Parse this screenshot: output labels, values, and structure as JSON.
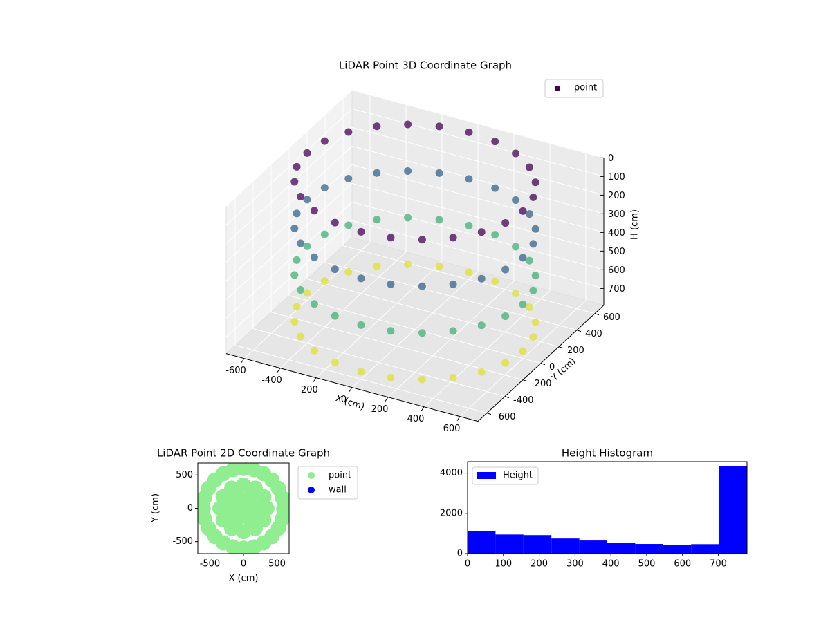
{
  "chart_data": [
    {
      "type": "scatter3d",
      "title": "LiDAR Point 3D Coordinate Graph",
      "xlabel": "X (cm)",
      "ylabel": "Y (cm)",
      "zlabel": "H (cm)",
      "xlim": [
        -700,
        700
      ],
      "ylim": [
        -700,
        700
      ],
      "zlim": [
        0,
        790
      ],
      "z_inverted": true,
      "xticks": [
        -600,
        -400,
        -200,
        0,
        200,
        400,
        600
      ],
      "yticks": [
        -600,
        -400,
        -200,
        0,
        200,
        400,
        600
      ],
      "zticks": [
        0,
        100,
        200,
        300,
        400,
        500,
        600,
        700
      ],
      "colormap": "viridis",
      "legend": "upper right",
      "grid": true,
      "series": [
        {
          "name": "point",
          "color": "#440154",
          "x": [
            600,
            580,
            520,
            424,
            300,
            155,
            0,
            -155,
            -300,
            -424,
            -520,
            -580,
            -600,
            -580,
            -520,
            -424,
            -300,
            -155,
            0,
            155,
            300,
            424,
            520,
            580,
            600,
            580,
            520,
            424,
            300,
            155,
            0,
            -155,
            -300,
            -424,
            -520,
            -580,
            -600,
            -580,
            -520,
            -424,
            -300,
            -155,
            0,
            155,
            300,
            424,
            520,
            580,
            600,
            580,
            520,
            424,
            300,
            155,
            0,
            -155,
            -300,
            -424,
            -520,
            -580,
            -600,
            -580,
            -520,
            -424,
            -300,
            -155,
            0,
            155,
            300,
            424,
            520,
            580,
            600,
            580,
            520,
            424,
            300,
            155,
            0,
            -155,
            -300,
            -424,
            -520,
            -580,
            -600,
            -580,
            -520,
            -424,
            -300,
            -155,
            0,
            155,
            300,
            424,
            520,
            580
          ],
          "y": [
            0,
            155,
            300,
            424,
            520,
            580,
            600,
            580,
            520,
            424,
            300,
            155,
            0,
            -155,
            -300,
            -424,
            -520,
            -580,
            -600,
            -580,
            -520,
            -424,
            -300,
            -155,
            0,
            155,
            300,
            424,
            520,
            580,
            600,
            580,
            520,
            424,
            300,
            155,
            0,
            -155,
            -300,
            -424,
            -520,
            -580,
            -600,
            -580,
            -520,
            -424,
            -300,
            -155,
            0,
            155,
            300,
            424,
            520,
            580,
            600,
            580,
            520,
            424,
            300,
            155,
            0,
            -155,
            -300,
            -424,
            -520,
            -580,
            -600,
            -580,
            -520,
            -424,
            -300,
            -155,
            0,
            155,
            300,
            424,
            520,
            580,
            600,
            580,
            520,
            424,
            300,
            155,
            0,
            -155,
            -300,
            -424,
            -520,
            -580,
            -600,
            -580,
            -520,
            -424,
            -300,
            -155
          ],
          "z": [
            0,
            0,
            0,
            0,
            0,
            0,
            0,
            0,
            0,
            0,
            0,
            0,
            0,
            0,
            0,
            0,
            0,
            0,
            0,
            0,
            0,
            0,
            0,
            0,
            250,
            250,
            250,
            250,
            250,
            250,
            250,
            250,
            250,
            250,
            250,
            250,
            250,
            250,
            250,
            250,
            250,
            250,
            250,
            250,
            250,
            250,
            250,
            250,
            500,
            500,
            500,
            500,
            500,
            500,
            500,
            500,
            500,
            500,
            500,
            500,
            500,
            500,
            500,
            500,
            500,
            500,
            500,
            500,
            500,
            500,
            500,
            500,
            750,
            750,
            750,
            750,
            750,
            750,
            750,
            750,
            750,
            750,
            750,
            750,
            750,
            750,
            750,
            750,
            750,
            750,
            750,
            750,
            750,
            750,
            750,
            750
          ]
        }
      ]
    },
    {
      "type": "scatter",
      "title": "LiDAR Point 2D Coordinate Graph",
      "xlabel": "X (cm)",
      "ylabel": "Y (cm)",
      "xlim": [
        -680,
        680
      ],
      "ylim": [
        -680,
        680
      ],
      "xticks": [
        -500,
        0,
        500
      ],
      "yticks": [
        -500,
        0,
        500
      ],
      "legend": "outside right",
      "series": [
        {
          "name": "point",
          "color": "#90ee90",
          "x": [
            600,
            580,
            520,
            424,
            300,
            155,
            0,
            -155,
            -300,
            -424,
            -520,
            -580,
            -600,
            -580,
            -520,
            -424,
            -300,
            -155,
            0,
            155,
            300,
            424,
            520,
            580,
            350,
            303,
            175,
            0,
            -175,
            -303,
            -350,
            -303,
            -175,
            0,
            175,
            303,
            175,
            88,
            -88,
            -175,
            -88,
            88,
            0
          ],
          "y": [
            0,
            155,
            300,
            424,
            520,
            580,
            600,
            580,
            520,
            424,
            300,
            155,
            0,
            -155,
            -300,
            -424,
            -520,
            -580,
            -600,
            -580,
            -520,
            -424,
            -300,
            -155,
            0,
            175,
            303,
            350,
            303,
            175,
            0,
            -175,
            -303,
            -350,
            -303,
            -175,
            0,
            152,
            152,
            0,
            -152,
            -152,
            0
          ]
        },
        {
          "name": "wall",
          "color": "#0000ff",
          "x": [],
          "y": []
        }
      ]
    },
    {
      "type": "histogram",
      "title": "Height Histogram",
      "name": "Height",
      "color": "#0000ff",
      "bins": [
        0,
        78,
        156,
        234,
        312,
        390,
        468,
        546,
        624,
        702,
        780
      ],
      "counts": [
        1100,
        950,
        920,
        750,
        650,
        550,
        480,
        430,
        470,
        4350
      ],
      "xlim": [
        0,
        780
      ],
      "ylim": [
        0,
        4570
      ],
      "xticks": [
        0,
        100,
        200,
        300,
        400,
        500,
        600,
        700
      ],
      "yticks": [
        0,
        2000,
        4000
      ],
      "legend": "upper left"
    }
  ]
}
